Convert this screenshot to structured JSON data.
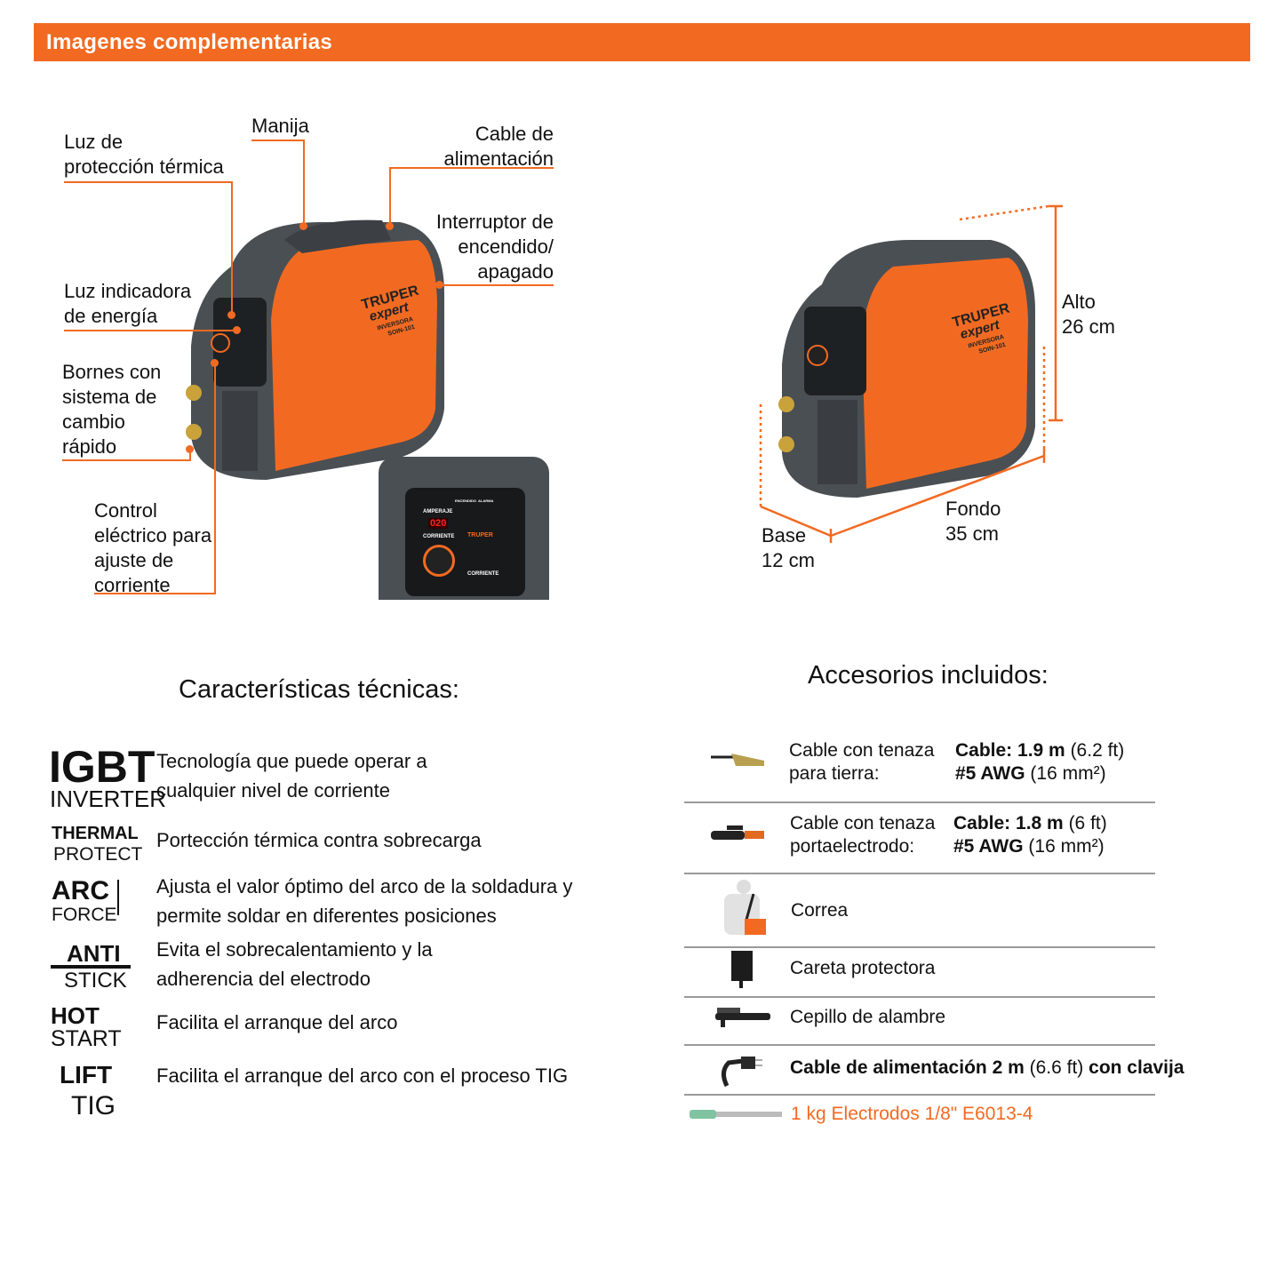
{
  "header": {
    "title": "Imagenes complementarias",
    "color": "#f26a21"
  },
  "callouts": {
    "luz_proteccion": "Luz de\nprotección térmica",
    "manija": "Manija",
    "cable_alimentacion": "Cable de\nalimentación",
    "interruptor": "Interruptor de\nencendido/\napagado",
    "luz_indicadora": "Luz indicadora\nde energía",
    "bornes": "Bornes con\nsistema de\ncambio\nrápido",
    "control": "Control\neléctrico para\najuste de\ncorriente"
  },
  "product_logo": {
    "brand": "TRUPER",
    "line": "expert",
    "type": "INVERSORA",
    "model": "SOIN-101"
  },
  "panel": {
    "amperaje": "AMPERAJE",
    "display": "020",
    "corriente": "CORRIENTE",
    "encendido": "ENCENDIDO",
    "alarma": "ALARMA"
  },
  "dimensions": {
    "alto": "Alto\n26 cm",
    "fondo": "Fondo\n35 cm",
    "base": "Base\n12 cm"
  },
  "features": {
    "title": "Características técnicas:",
    "items": [
      {
        "icon": "igbt-inverter-icon",
        "badge_top": "IGBT",
        "badge_bottom": "INVERTER",
        "text": "Tecnología que puede operar a\ncualquier nivel de corriente"
      },
      {
        "icon": "thermal-protect-icon",
        "badge_top": "THERMAL",
        "badge_bottom": "PROTECT",
        "text": "Portección térmica contra sobrecarga"
      },
      {
        "icon": "arc-force-icon",
        "badge_top": "ARC",
        "badge_bottom": "FORCE",
        "text": "Ajusta el valor óptimo del arco de la soldadura y\npermite soldar en diferentes posiciones"
      },
      {
        "icon": "anti-stick-icon",
        "badge_top": "ANTI",
        "badge_bottom": "STICK",
        "text": "Evita el sobrecalentamiento y la\nadherencia del electrodo"
      },
      {
        "icon": "hot-start-icon",
        "badge_top": "HOT",
        "badge_bottom": "START",
        "text": "Facilita el arranque del arco"
      },
      {
        "icon": "lift-tig-icon",
        "badge_top": "LIFT",
        "badge_bottom": "TIG",
        "text": "Facilita el arranque del arco con el proceso TIG"
      }
    ]
  },
  "accessories": {
    "title": "Accesorios incluidos:",
    "items": [
      {
        "icon": "ground-clamp-icon",
        "name": "Cable con tenaza\npara tierra:",
        "spec1_bold": "Cable: 1.9 m",
        "spec1_light": "(6.2 ft)",
        "spec2_bold": "#5 AWG",
        "spec2_light": "(16 mm²)"
      },
      {
        "icon": "electrode-holder-icon",
        "name": "Cable con tenaza\nportaelectrodo:",
        "spec1_bold": "Cable: 1.8 m",
        "spec1_light": "(6 ft)",
        "spec2_bold": "#5 AWG",
        "spec2_light": "(16 mm²)"
      },
      {
        "icon": "strap-icon",
        "name": "Correa"
      },
      {
        "icon": "welding-mask-icon",
        "name": "Careta protectora"
      },
      {
        "icon": "wire-brush-icon",
        "name": "Cepillo de alambre"
      },
      {
        "icon": "power-cable-plug-icon",
        "name_bold1": "Cable de alimentación 2 m",
        "name_light": "(6.6 ft)",
        "name_bold2": "con clavija"
      },
      {
        "icon": "electrode-icon",
        "name": "1 kg Electrodos 1/8\" E6013-4",
        "color": "#f26a21"
      }
    ]
  }
}
